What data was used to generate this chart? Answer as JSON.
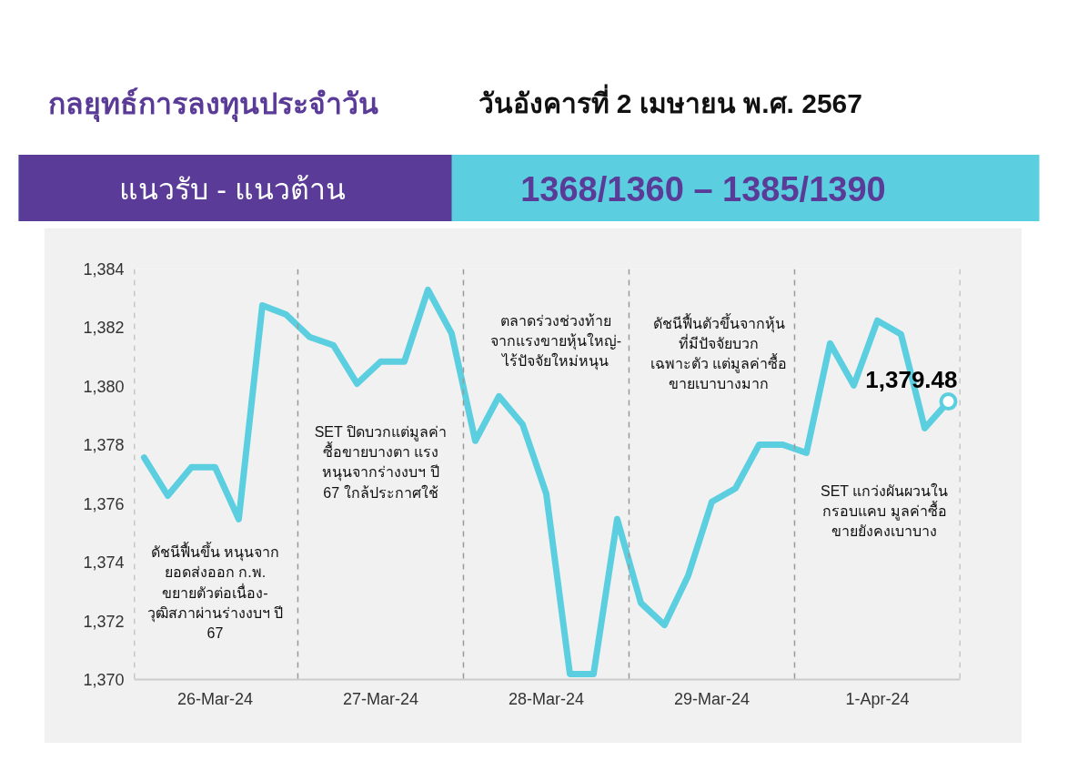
{
  "chart_data": {
    "type": "line",
    "title": "กลยุทธ์การลงทุนประจำวัน",
    "subtitle": "วันอังคารที่ 2 เมษายน พ.ศ. 2567",
    "annotations": [
      "แนวรับ - แนวต้าน",
      "1368/1360  –  1385/1390",
      "ดัชนีฟื้นขึ้น หนุนจาก\nยอดส่งออก ก.พ.\nขยายตัวต่อเนื่อง-\nวุฒิสภาผ่านร่างงบฯ ปี\n67",
      "SET ปิดบวกแต่มูลค่า\nซื้อขายบางตา แรง\nหนุนจากร่างงบฯ ปี\n67 ใกล้ประกาศใช้",
      "ตลาดร่วงช่วงท้าย\nจากแรงขายหุ้นใหญ่-\nไร้ปัจจัยใหม่หนุน",
      "ดัชนีฟื้นตัวขึ้นจากหุ้น\nที่มีปัจจัยบวก\nเฉพาะตัว แต่มูลค่าซื้อ\nขายเบาบางมาก",
      "SET แกว่งผันผวนใน\nกรอบแคบ มูลค่าซื้อ\nขายยังคงเบาบาง"
    ],
    "categories": [
      null,
      null,
      null,
      "26-Mar-24",
      null,
      null,
      null,
      null,
      null,
      null,
      "27-Mar-24",
      null,
      null,
      null,
      null,
      null,
      null,
      "28-Mar-24",
      null,
      null,
      null,
      null,
      null,
      null,
      "29-Mar-24",
      null,
      null,
      null,
      null,
      null,
      null,
      "1-Apr-24",
      null,
      null,
      null
    ],
    "series": [
      {
        "color": "#5bcfdf",
        "values": [
          1377.57,
          1376.27,
          1377.24,
          1377.24,
          1375.47,
          1382.76,
          1382.45,
          1381.68,
          1381.4,
          1380.09,
          1380.84,
          1380.84,
          1383.29,
          1381.8,
          1378.14,
          1379.66,
          1378.7,
          1376.34,
          1370.19,
          1370.19,
          1375.47,
          1372.61,
          1371.86,
          1373.54,
          1376.06,
          1376.52,
          1378.01,
          1378.01,
          1377.73,
          1381.46,
          1380.03,
          1382.24,
          1381.77,
          1378.57,
          1379.48
        ],
        "value_labels": [
          null,
          null,
          null,
          null,
          null,
          null,
          null,
          null,
          null,
          null,
          null,
          null,
          null,
          null,
          null,
          null,
          null,
          null,
          null,
          null,
          null,
          null,
          null,
          null,
          null,
          null,
          null,
          null,
          null,
          null,
          null,
          null,
          null,
          null,
          "1,379.48"
        ]
      }
    ],
    "ylim": [
      1370,
      1384
    ],
    "yticks": [
      {
        "value": 1370,
        "label": "1,370"
      },
      {
        "value": 1372,
        "label": "1,372"
      },
      {
        "value": 1374,
        "label": "1,374"
      },
      {
        "value": 1376,
        "label": "1,376"
      },
      {
        "value": 1378,
        "label": "1,378"
      },
      {
        "value": 1380,
        "label": "1,380"
      },
      {
        "value": 1382,
        "label": "1,382"
      },
      {
        "value": 1384,
        "label": "1,384"
      }
    ],
    "grid": "x"
  }
}
